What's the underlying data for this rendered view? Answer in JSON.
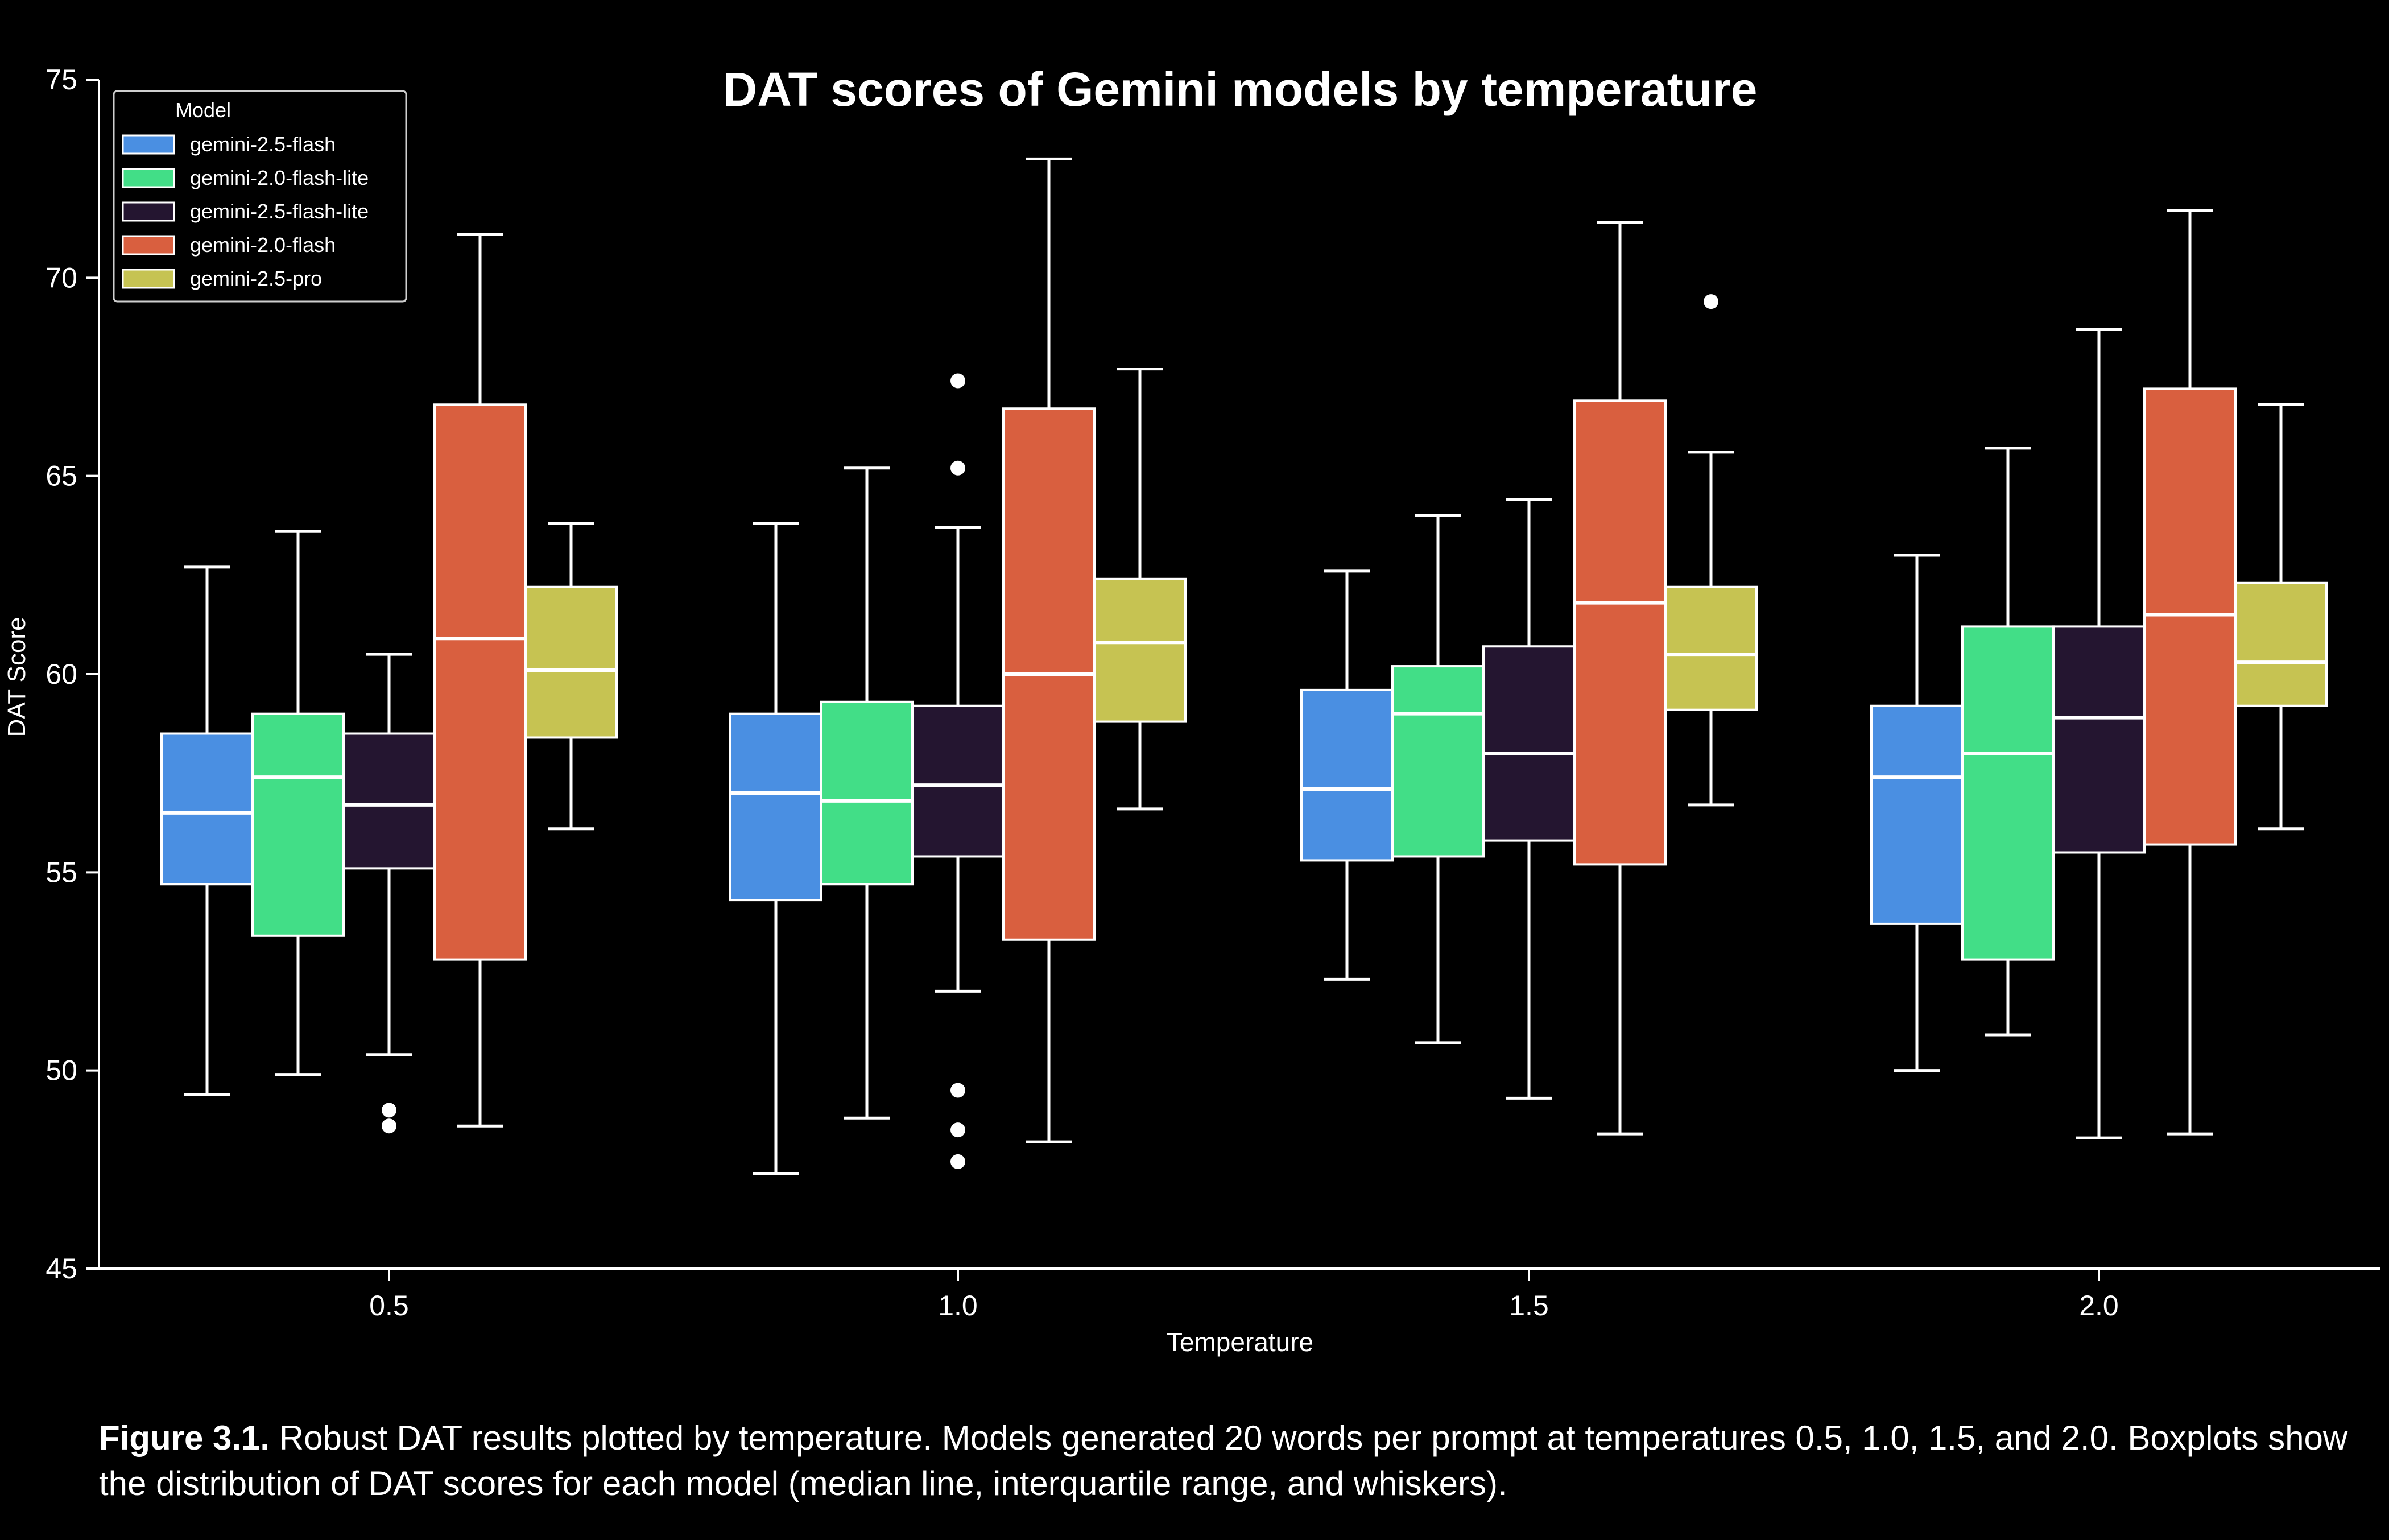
{
  "chart_data": {
    "type": "box",
    "title": "DAT scores of Gemini models by temperature",
    "xlabel": "Temperature",
    "ylabel": "DAT Score",
    "categories": [
      "0.5",
      "1.0",
      "1.5",
      "2.0"
    ],
    "ylim": [
      45,
      75
    ],
    "yticks": [
      "45",
      "50",
      "55",
      "60",
      "65",
      "70",
      "75"
    ],
    "legend": {
      "title": "Model",
      "placement": "top-left"
    },
    "grid": false,
    "series": [
      {
        "name": "gemini-2.5-flash",
        "color": "#4A8FE2",
        "boxes": [
          {
            "whislo": 49.4,
            "q1": 54.7,
            "med": 56.5,
            "q3": 58.5,
            "whishi": 62.7,
            "fliers": []
          },
          {
            "whislo": 47.4,
            "q1": 54.3,
            "med": 57.0,
            "q3": 59.0,
            "whishi": 63.8,
            "fliers": []
          },
          {
            "whislo": 52.3,
            "q1": 55.3,
            "med": 57.1,
            "q3": 59.6,
            "whishi": 62.6,
            "fliers": []
          },
          {
            "whislo": 50.0,
            "q1": 53.7,
            "med": 57.4,
            "q3": 59.2,
            "whishi": 63.0,
            "fliers": []
          }
        ]
      },
      {
        "name": "gemini-2.0-flash-lite",
        "color": "#42DE87",
        "boxes": [
          {
            "whislo": 49.9,
            "q1": 53.4,
            "med": 57.4,
            "q3": 59.0,
            "whishi": 63.6,
            "fliers": []
          },
          {
            "whislo": 48.8,
            "q1": 54.7,
            "med": 56.8,
            "q3": 59.3,
            "whishi": 65.2,
            "fliers": []
          },
          {
            "whislo": 50.7,
            "q1": 55.4,
            "med": 59.0,
            "q3": 60.2,
            "whishi": 64.0,
            "fliers": []
          },
          {
            "whislo": 50.9,
            "q1": 52.8,
            "med": 58.0,
            "q3": 61.2,
            "whishi": 65.7,
            "fliers": []
          }
        ]
      },
      {
        "name": "gemini-2.5-flash-lite",
        "color": "#241530",
        "boxes": [
          {
            "whislo": 50.4,
            "q1": 55.1,
            "med": 56.7,
            "q3": 58.5,
            "whishi": 60.5,
            "fliers": [
              49.0,
              48.6
            ]
          },
          {
            "whislo": 52.0,
            "q1": 55.4,
            "med": 57.2,
            "q3": 59.2,
            "whishi": 63.7,
            "fliers": [
              67.4,
              65.2,
              49.5,
              48.5,
              47.7
            ]
          },
          {
            "whislo": 49.3,
            "q1": 55.8,
            "med": 58.0,
            "q3": 60.7,
            "whishi": 64.4,
            "fliers": []
          },
          {
            "whislo": 48.3,
            "q1": 55.5,
            "med": 58.9,
            "q3": 61.2,
            "whishi": 68.7,
            "fliers": []
          }
        ]
      },
      {
        "name": "gemini-2.0-flash",
        "color": "#D95F3F",
        "boxes": [
          {
            "whislo": 48.6,
            "q1": 52.8,
            "med": 60.9,
            "q3": 66.8,
            "whishi": 71.1,
            "fliers": []
          },
          {
            "whislo": 48.2,
            "q1": 53.3,
            "med": 60.0,
            "q3": 66.7,
            "whishi": 73.0,
            "fliers": []
          },
          {
            "whislo": 48.4,
            "q1": 55.2,
            "med": 61.8,
            "q3": 66.9,
            "whishi": 71.4,
            "fliers": []
          },
          {
            "whislo": 48.4,
            "q1": 55.7,
            "med": 61.5,
            "q3": 67.2,
            "whishi": 71.7,
            "fliers": []
          }
        ]
      },
      {
        "name": "gemini-2.5-pro",
        "color": "#C6C352",
        "boxes": [
          {
            "whislo": 56.1,
            "q1": 58.4,
            "med": 60.1,
            "q3": 62.2,
            "whishi": 63.8,
            "fliers": []
          },
          {
            "whislo": 56.6,
            "q1": 58.8,
            "med": 60.8,
            "q3": 62.4,
            "whishi": 67.7,
            "fliers": []
          },
          {
            "whislo": 56.7,
            "q1": 59.1,
            "med": 60.5,
            "q3": 62.2,
            "whishi": 65.6,
            "fliers": [
              69.4
            ]
          },
          {
            "whislo": 56.1,
            "q1": 59.2,
            "med": 60.3,
            "q3": 62.3,
            "whishi": 66.8,
            "fliers": []
          }
        ]
      }
    ]
  },
  "caption": {
    "label": "Figure 3.1.",
    "text": " Robust DAT results plotted by temperature. Models generated 20 words per prompt at temperatures 0.5, 1.0, 1.5, and 2.0. Boxplots show the distribution of DAT scores for each model (median line, interquartile range, and whiskers)."
  }
}
